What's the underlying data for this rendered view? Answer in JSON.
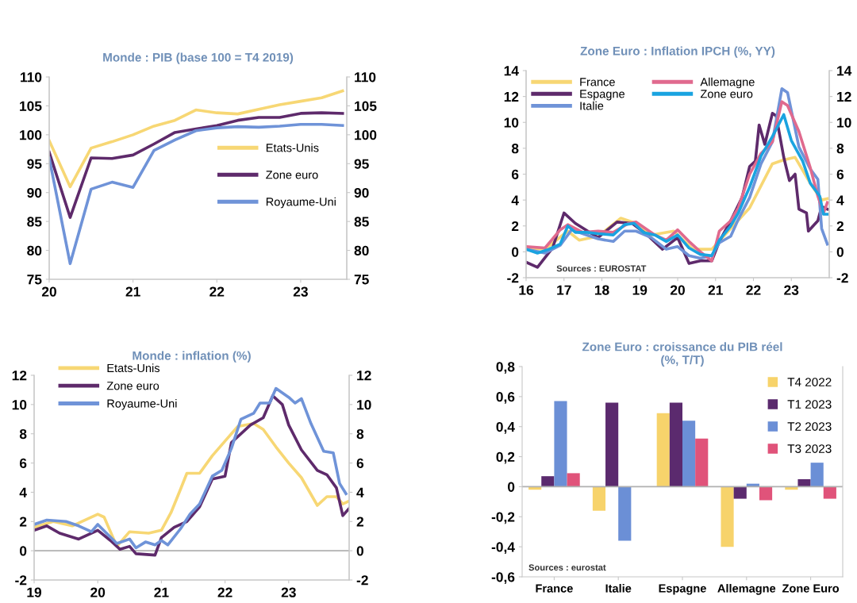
{
  "chart_data": [
    {
      "type": "line",
      "title": "Monde : PIB (base 100 = T4 2019)",
      "legend": "right",
      "xlim": [
        2020,
        2023.55
      ],
      "xticks": [
        {
          "value": 2020,
          "label": "20"
        },
        {
          "value": 2021,
          "label": "21"
        },
        {
          "value": 2022,
          "label": "22"
        },
        {
          "value": 2023,
          "label": "23"
        }
      ],
      "ylim": [
        75,
        110
      ],
      "yticks": [
        75,
        80,
        85,
        90,
        95,
        100,
        105,
        110
      ],
      "y2lim": [
        75,
        110
      ],
      "y2ticks": [
        75,
        80,
        85,
        90,
        95,
        100,
        105,
        110
      ],
      "x": [
        2020,
        2020.25,
        2020.5,
        2020.75,
        2021,
        2021.25,
        2021.5,
        2021.75,
        2022,
        2022.25,
        2022.5,
        2022.75,
        2023,
        2023.25,
        2023.5
      ],
      "series": [
        {
          "name": "Etats-Unis",
          "color": "#f7d774",
          "values": [
            99,
            91,
            97.7,
            98.8,
            100,
            101.5,
            102.5,
            104.3,
            103.8,
            103.6,
            104.4,
            105.2,
            105.8,
            106.4,
            107.6
          ]
        },
        {
          "name": "Zone euro",
          "color": "#5e2a6b",
          "values": [
            97,
            85.7,
            96,
            95.9,
            96.5,
            98.4,
            100.4,
            101,
            101.6,
            102.5,
            103,
            103,
            103.7,
            103.8,
            103.7
          ]
        },
        {
          "name": "Royaume-Uni",
          "color": "#6f93d8",
          "values": [
            96,
            77.7,
            90.6,
            91.8,
            90.9,
            97.3,
            99.1,
            100.7,
            101.2,
            101.4,
            101.3,
            101.5,
            101.8,
            101.8,
            101.6
          ]
        }
      ]
    },
    {
      "type": "line",
      "title": "Zone Euro : Inflation IPCH (%, YY)",
      "legend": "top left",
      "annotations": [
        "Sources : EUROSTAT"
      ],
      "xlim": [
        2016,
        2024
      ],
      "xticks": [
        {
          "value": 2016,
          "label": "16"
        },
        {
          "value": 2017,
          "label": "17"
        },
        {
          "value": 2018,
          "label": "18"
        },
        {
          "value": 2019,
          "label": "19"
        },
        {
          "value": 2020,
          "label": "20"
        },
        {
          "value": 2021,
          "label": "21"
        },
        {
          "value": 2022,
          "label": "22"
        },
        {
          "value": 2023,
          "label": "23"
        }
      ],
      "ylim": [
        -2,
        14
      ],
      "yticks": [
        -2,
        0,
        2,
        4,
        6,
        8,
        10,
        12,
        14
      ],
      "y2lim": [
        -2,
        14
      ],
      "y2ticks": [
        -2,
        0,
        2,
        4,
        6,
        8,
        10,
        12,
        14
      ],
      "series": [
        {
          "name": "France",
          "color": "#f7d774",
          "x": [
            2016.0,
            2016.5,
            2017.1,
            2017.4,
            2017.9,
            2018.5,
            2018.9,
            2019.3,
            2019.9,
            2020.4,
            2020.9,
            2021.4,
            2021.9,
            2022.2,
            2022.5,
            2022.8,
            2023.1,
            2023.5,
            2023.8,
            2023.95
          ],
          "values": [
            0.3,
            0.2,
            1.6,
            0.9,
            1.2,
            2.6,
            2.2,
            1.3,
            1.6,
            0.2,
            0.2,
            1.8,
            3.4,
            5.1,
            6.8,
            7.1,
            7.3,
            5.3,
            4.0,
            4.1
          ]
        },
        {
          "name": "Espagne",
          "color": "#5e2a6b",
          "x": [
            2016.0,
            2016.3,
            2016.7,
            2017.0,
            2017.3,
            2017.9,
            2018.4,
            2018.8,
            2019.2,
            2019.6,
            2020.0,
            2020.3,
            2020.6,
            2020.9,
            2021.1,
            2021.4,
            2021.7,
            2021.9,
            2022.05,
            2022.15,
            2022.3,
            2022.5,
            2022.6,
            2022.8,
            2022.95,
            2023.1,
            2023.2,
            2023.4,
            2023.45,
            2023.7,
            2023.8,
            2023.95
          ],
          "values": [
            -0.8,
            -1.2,
            0.3,
            3.0,
            2.2,
            1.1,
            2.3,
            2.2,
            1.3,
            0.2,
            1.1,
            -0.9,
            -0.7,
            -0.7,
            0.8,
            2.4,
            4.2,
            6.6,
            7.0,
            9.8,
            8.3,
            10.7,
            10.5,
            7.3,
            5.5,
            6.0,
            3.3,
            3.0,
            1.6,
            2.4,
            3.5,
            3.3
          ]
        },
        {
          "name": "Italie",
          "color": "#6f93d8",
          "x": [
            2016.0,
            2016.5,
            2016.9,
            2017.2,
            2017.6,
            2017.9,
            2018.3,
            2018.6,
            2018.9,
            2019.3,
            2019.7,
            2020.0,
            2020.3,
            2020.6,
            2020.9,
            2021.1,
            2021.4,
            2021.6,
            2021.9,
            2022.2,
            2022.5,
            2022.75,
            2022.9,
            2023.2,
            2023.5,
            2023.7,
            2023.8,
            2023.95
          ],
          "values": [
            0.2,
            -0.1,
            0.5,
            1.7,
            1.3,
            1.0,
            0.8,
            1.6,
            1.6,
            1.1,
            0.2,
            0.4,
            -0.3,
            -0.5,
            -0.3,
            0.7,
            1.2,
            2.5,
            4.2,
            6.8,
            8.5,
            12.6,
            12.3,
            8.1,
            6.4,
            5.6,
            1.8,
            0.6
          ]
        },
        {
          "name": "Allemagne",
          "color": "#e06a8e",
          "x": [
            2016.0,
            2016.5,
            2016.9,
            2017.1,
            2017.5,
            2017.9,
            2018.3,
            2018.7,
            2018.9,
            2019.4,
            2019.7,
            2020.0,
            2020.3,
            2020.6,
            2020.9,
            2021.1,
            2021.4,
            2021.6,
            2021.9,
            2022.2,
            2022.5,
            2022.75,
            2022.9,
            2023.2,
            2023.5,
            2023.7,
            2023.85,
            2023.95
          ],
          "values": [
            0.4,
            0.3,
            1.7,
            2.1,
            1.5,
            1.6,
            1.5,
            2.2,
            2.3,
            1.3,
            0.9,
            1.7,
            0.8,
            0.0,
            -0.7,
            1.6,
            2.4,
            3.4,
            6.0,
            7.6,
            8.5,
            11.6,
            11.3,
            9.3,
            6.5,
            4.3,
            3.0,
            3.8
          ]
        },
        {
          "name": "Zone euro",
          "color": "#1aa3e0",
          "x": [
            2016.0,
            2016.3,
            2016.6,
            2016.9,
            2017.1,
            2017.3,
            2017.6,
            2017.9,
            2018.3,
            2018.6,
            2018.85,
            2019.1,
            2019.4,
            2019.7,
            2020.0,
            2020.3,
            2020.6,
            2020.9,
            2021.1,
            2021.4,
            2021.6,
            2021.9,
            2022.2,
            2022.5,
            2022.8,
            2023.0,
            2023.3,
            2023.5,
            2023.75,
            2023.85,
            2023.95
          ],
          "values": [
            0.2,
            -0.1,
            0.2,
            0.6,
            2.0,
            1.5,
            1.5,
            1.4,
            1.3,
            2.1,
            2.2,
            1.5,
            1.3,
            0.8,
            1.3,
            0.3,
            -0.2,
            -0.3,
            0.9,
            2.0,
            3.0,
            5.0,
            7.4,
            8.9,
            10.6,
            8.6,
            7.0,
            5.3,
            4.3,
            2.9,
            2.9
          ]
        }
      ]
    },
    {
      "type": "line",
      "title": "Monde : inflation (%)",
      "legend": "top left",
      "xlim": [
        2019,
        2023.95
      ],
      "xticks": [
        {
          "value": 2019,
          "label": "19"
        },
        {
          "value": 2020,
          "label": "20"
        },
        {
          "value": 2021,
          "label": "21"
        },
        {
          "value": 2022,
          "label": "22"
        },
        {
          "value": 2023,
          "label": "23"
        }
      ],
      "ylim": [
        -2,
        12
      ],
      "yticks": [
        -2,
        0,
        2,
        4,
        6,
        8,
        10,
        12
      ],
      "y2lim": [
        -2,
        12
      ],
      "y2ticks": [
        -2,
        0,
        2,
        4,
        6,
        8,
        10,
        12
      ],
      "ref_lines": [
        {
          "axis": "y",
          "value": 0,
          "color": "#b0b0b0"
        }
      ],
      "series": [
        {
          "name": "Etats-Unis",
          "color": "#f7d774",
          "x": [
            2019.0,
            2019.3,
            2019.6,
            2019.85,
            2020.0,
            2020.1,
            2020.3,
            2020.5,
            2020.8,
            2021.0,
            2021.15,
            2021.3,
            2021.4,
            2021.6,
            2021.8,
            2022.0,
            2022.2,
            2022.45,
            2022.6,
            2022.8,
            2023.0,
            2023.2,
            2023.45,
            2023.6,
            2023.75,
            2023.85,
            2023.95
          ],
          "values": [
            1.6,
            2.0,
            1.7,
            2.2,
            2.5,
            2.3,
            0.3,
            1.3,
            1.2,
            1.4,
            2.6,
            4.2,
            5.3,
            5.3,
            6.5,
            7.5,
            8.5,
            8.7,
            8.3,
            7.1,
            6.0,
            5.0,
            3.1,
            3.7,
            3.7,
            3.2,
            3.4
          ]
        },
        {
          "name": "Zone euro",
          "color": "#5e2a6b",
          "x": [
            2019.0,
            2019.2,
            2019.4,
            2019.7,
            2020.0,
            2020.2,
            2020.35,
            2020.5,
            2020.6,
            2020.9,
            2021.0,
            2021.2,
            2021.4,
            2021.6,
            2021.8,
            2022.0,
            2022.1,
            2022.4,
            2022.6,
            2022.75,
            2022.9,
            2023.0,
            2023.2,
            2023.45,
            2023.6,
            2023.75,
            2023.85,
            2023.95
          ],
          "values": [
            1.4,
            1.7,
            1.2,
            0.8,
            1.4,
            0.7,
            0.1,
            0.3,
            -0.2,
            -0.3,
            0.9,
            1.6,
            2.0,
            3.0,
            4.9,
            5.1,
            7.4,
            8.6,
            9.1,
            10.6,
            10.0,
            8.6,
            6.9,
            5.5,
            5.2,
            4.3,
            2.4,
            2.9
          ]
        },
        {
          "name": "Royaume-Uni",
          "color": "#6f93d8",
          "x": [
            2019.0,
            2019.2,
            2019.5,
            2019.7,
            2019.9,
            2020.0,
            2020.3,
            2020.5,
            2020.6,
            2020.75,
            2020.9,
            2021.0,
            2021.1,
            2021.3,
            2021.45,
            2021.6,
            2021.8,
            2021.95,
            2022.1,
            2022.25,
            2022.45,
            2022.55,
            2022.7,
            2022.8,
            2023.0,
            2023.1,
            2023.2,
            2023.35,
            2023.55,
            2023.7,
            2023.8,
            2023.9
          ],
          "values": [
            1.8,
            2.1,
            2.0,
            1.7,
            1.3,
            1.8,
            0.5,
            0.8,
            0.2,
            0.6,
            0.4,
            0.7,
            0.4,
            1.5,
            2.5,
            3.2,
            5.1,
            5.5,
            7.0,
            9.0,
            9.4,
            10.1,
            10.1,
            11.1,
            10.5,
            10.1,
            10.4,
            8.7,
            6.8,
            6.7,
            4.6,
            3.9
          ]
        }
      ]
    },
    {
      "type": "bar",
      "title": "Zone Euro : croissance du PIB réel\n(%, T/T)",
      "legend": "top right",
      "marker": "square",
      "annotations": [
        "Sources : eurostat"
      ],
      "categories": [
        "France",
        "Italie",
        "Espagne",
        "Allemagne",
        "Zone Euro"
      ],
      "ylim": [
        -0.6,
        0.8
      ],
      "yticks": [
        {
          "value": -0.6,
          "label": "-0,6"
        },
        {
          "value": -0.4,
          "label": "-0,4"
        },
        {
          "value": -0.2,
          "label": "-0,2"
        },
        0,
        {
          "value": 0.2,
          "label": "0,2"
        },
        {
          "value": 0.4,
          "label": "0,4"
        },
        {
          "value": 0.6,
          "label": "0,6"
        },
        {
          "value": 0.8,
          "label": "0,8"
        }
      ],
      "ref_lines": [
        {
          "axis": "y",
          "value": 0,
          "color": "#b0b0b0"
        }
      ],
      "series": [
        {
          "name": "T4 2022",
          "color": "#f7d36b",
          "values": [
            -0.02,
            -0.16,
            0.49,
            -0.4,
            -0.02
          ]
        },
        {
          "name": "T1 2023",
          "color": "#5b2a6e",
          "values": [
            0.07,
            0.56,
            0.56,
            -0.08,
            0.05
          ]
        },
        {
          "name": "T2 2023",
          "color": "#6b8fd6",
          "values": [
            0.57,
            -0.36,
            0.44,
            0.02,
            0.16
          ]
        },
        {
          "name": "T3 2023",
          "color": "#e0537a",
          "values": [
            0.09,
            0.0,
            0.32,
            -0.09,
            -0.08
          ]
        }
      ]
    }
  ]
}
